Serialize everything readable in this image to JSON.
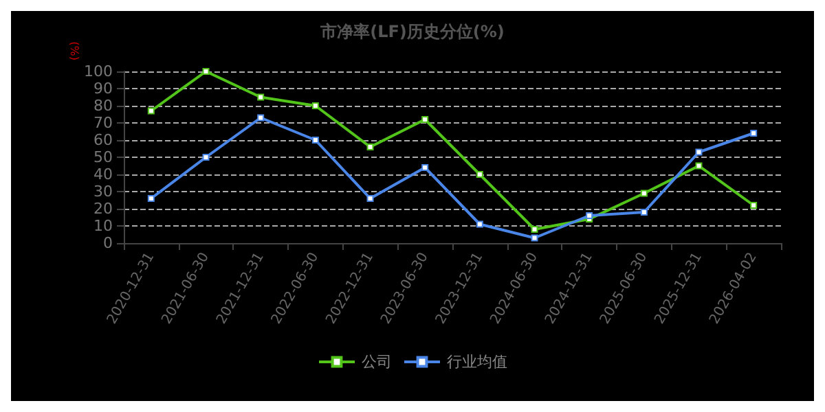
{
  "chart_data": {
    "type": "line",
    "title": "市净率(LF)历史分位(%)",
    "ylabel": "(%)",
    "categories": [
      "2020-12-31",
      "2021-06-30",
      "2021-12-31",
      "2022-06-30",
      "2022-12-31",
      "2023-06-30",
      "2023-12-31",
      "2024-06-30",
      "2024-12-31",
      "2025-06-30",
      "2025-12-31",
      "2026-04-02"
    ],
    "series": [
      {
        "name": "公司",
        "color": "#52c41a",
        "values": [
          77,
          100,
          85,
          80,
          56,
          72,
          40,
          8,
          14,
          29,
          45,
          22
        ]
      },
      {
        "name": "行业均值",
        "color": "#4a86e8",
        "values": [
          26,
          50,
          73,
          60,
          26,
          44,
          11,
          3,
          16,
          18,
          53,
          64
        ]
      }
    ],
    "ylim": [
      0,
      100
    ],
    "yticks": [
      0,
      10,
      20,
      30,
      40,
      50,
      60,
      70,
      80,
      90,
      100
    ],
    "grid": "y",
    "legend": "bottom",
    "marker": "square",
    "line_style": "solid"
  }
}
